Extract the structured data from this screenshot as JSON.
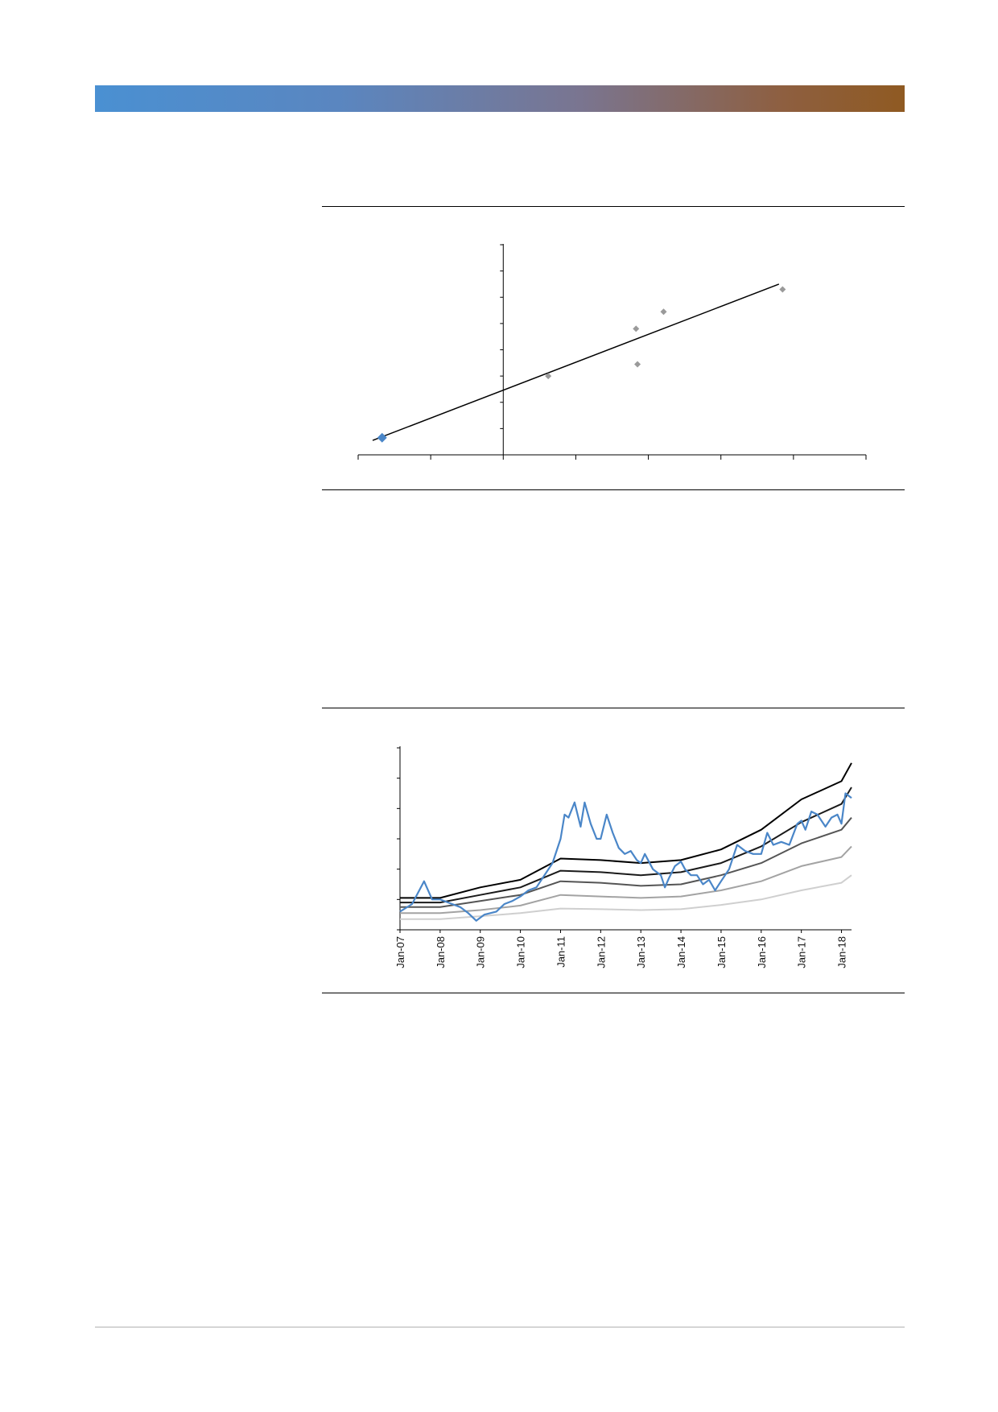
{
  "colors": {
    "banner_start": "#4a90d2",
    "banner_end": "#8f5a22",
    "accent_blue": "#4a86c8",
    "point_gray": "#9a9a9a"
  },
  "chart_data": [
    {
      "type": "scatter",
      "title": "",
      "xlabel": "",
      "ylabel": "",
      "xlim": [
        -2,
        5
      ],
      "ylim": [
        -2,
        6
      ],
      "grid": false,
      "legend": "none",
      "series": [
        {
          "values": [
            {
              "x": -1.67,
              "y": -1.35,
              "highlight": true
            },
            {
              "x": 0.62,
              "y": 1.0
            },
            {
              "x": 1.83,
              "y": 2.8
            },
            {
              "x": 1.85,
              "y": 1.45
            },
            {
              "x": 2.21,
              "y": 3.45
            },
            {
              "x": 3.85,
              "y": 4.3
            }
          ]
        }
      ],
      "trendline": {
        "type": "linear",
        "points": [
          {
            "x": -1.8,
            "y": -1.45
          },
          {
            "x": 3.8,
            "y": 4.5
          }
        ]
      }
    },
    {
      "type": "line",
      "title": "",
      "xlabel": "",
      "ylabel": "",
      "x_tick_labels": [
        "Jan-07",
        "Jan-08",
        "Jan-09",
        "Jan-10",
        "Jan-11",
        "Jan-12",
        "Jan-13",
        "Jan-14",
        "Jan-15",
        "Jan-16",
        "Jan-17",
        "Jan-18"
      ],
      "xlim": [
        2007.0,
        2018.25
      ],
      "ylim": [
        0,
        6
      ],
      "grid": false,
      "legend": "none",
      "series": [
        {
          "color": "#000000",
          "points": [
            [
              2007.0,
              1.05
            ],
            [
              2008.0,
              1.05
            ],
            [
              2009.0,
              1.4
            ],
            [
              2010.0,
              1.65
            ],
            [
              2011.0,
              2.35
            ],
            [
              2012.0,
              2.3
            ],
            [
              2013.0,
              2.2
            ],
            [
              2014.0,
              2.3
            ],
            [
              2015.0,
              2.65
            ],
            [
              2016.0,
              3.3
            ],
            [
              2017.0,
              4.3
            ],
            [
              2018.0,
              4.9
            ],
            [
              2018.25,
              5.5
            ]
          ]
        },
        {
          "color": "#1a1a1a",
          "points": [
            [
              2007.0,
              0.9
            ],
            [
              2008.0,
              0.9
            ],
            [
              2009.0,
              1.15
            ],
            [
              2010.0,
              1.4
            ],
            [
              2011.0,
              1.95
            ],
            [
              2012.0,
              1.9
            ],
            [
              2013.0,
              1.8
            ],
            [
              2014.0,
              1.9
            ],
            [
              2015.0,
              2.2
            ],
            [
              2016.0,
              2.75
            ],
            [
              2017.0,
              3.55
            ],
            [
              2018.0,
              4.15
            ],
            [
              2018.25,
              4.7
            ]
          ]
        },
        {
          "color": "#555555",
          "points": [
            [
              2007.0,
              0.75
            ],
            [
              2008.0,
              0.75
            ],
            [
              2009.0,
              0.95
            ],
            [
              2010.0,
              1.15
            ],
            [
              2011.0,
              1.6
            ],
            [
              2012.0,
              1.55
            ],
            [
              2013.0,
              1.45
            ],
            [
              2014.0,
              1.5
            ],
            [
              2015.0,
              1.8
            ],
            [
              2016.0,
              2.2
            ],
            [
              2017.0,
              2.85
            ],
            [
              2018.0,
              3.3
            ],
            [
              2018.25,
              3.7
            ]
          ]
        },
        {
          "color": "#a3a3a3",
          "points": [
            [
              2007.0,
              0.55
            ],
            [
              2008.0,
              0.55
            ],
            [
              2009.0,
              0.65
            ],
            [
              2010.0,
              0.8
            ],
            [
              2011.0,
              1.15
            ],
            [
              2012.0,
              1.1
            ],
            [
              2013.0,
              1.05
            ],
            [
              2014.0,
              1.1
            ],
            [
              2015.0,
              1.3
            ],
            [
              2016.0,
              1.6
            ],
            [
              2017.0,
              2.1
            ],
            [
              2018.0,
              2.4
            ],
            [
              2018.25,
              2.75
            ]
          ]
        },
        {
          "color": "#cfcfcf",
          "points": [
            [
              2007.0,
              0.35
            ],
            [
              2008.0,
              0.35
            ],
            [
              2009.0,
              0.45
            ],
            [
              2010.0,
              0.55
            ],
            [
              2011.0,
              0.7
            ],
            [
              2012.0,
              0.68
            ],
            [
              2013.0,
              0.65
            ],
            [
              2014.0,
              0.68
            ],
            [
              2015.0,
              0.82
            ],
            [
              2016.0,
              1.0
            ],
            [
              2017.0,
              1.3
            ],
            [
              2018.0,
              1.55
            ],
            [
              2018.25,
              1.8
            ]
          ]
        },
        {
          "color": "#4a86c8",
          "points": [
            [
              2007.0,
              0.6
            ],
            [
              2007.3,
              0.85
            ],
            [
              2007.6,
              1.6
            ],
            [
              2007.8,
              1.0
            ],
            [
              2008.0,
              1.0
            ],
            [
              2008.2,
              0.9
            ],
            [
              2008.5,
              0.75
            ],
            [
              2008.7,
              0.55
            ],
            [
              2008.9,
              0.3
            ],
            [
              2009.1,
              0.5
            ],
            [
              2009.4,
              0.6
            ],
            [
              2009.6,
              0.85
            ],
            [
              2009.8,
              0.95
            ],
            [
              2010.0,
              1.1
            ],
            [
              2010.2,
              1.3
            ],
            [
              2010.4,
              1.4
            ],
            [
              2010.6,
              1.8
            ],
            [
              2010.8,
              2.2
            ],
            [
              2011.0,
              3.0
            ],
            [
              2011.1,
              3.8
            ],
            [
              2011.2,
              3.7
            ],
            [
              2011.35,
              4.2
            ],
            [
              2011.5,
              3.4
            ],
            [
              2011.6,
              4.2
            ],
            [
              2011.75,
              3.5
            ],
            [
              2011.9,
              3.0
            ],
            [
              2012.0,
              3.0
            ],
            [
              2012.15,
              3.8
            ],
            [
              2012.3,
              3.2
            ],
            [
              2012.45,
              2.7
            ],
            [
              2012.6,
              2.5
            ],
            [
              2012.75,
              2.6
            ],
            [
              2012.9,
              2.3
            ],
            [
              2013.0,
              2.2
            ],
            [
              2013.1,
              2.5
            ],
            [
              2013.3,
              2.0
            ],
            [
              2013.5,
              1.8
            ],
            [
              2013.6,
              1.4
            ],
            [
              2013.7,
              1.7
            ],
            [
              2013.85,
              2.1
            ],
            [
              2014.0,
              2.25
            ],
            [
              2014.1,
              2.0
            ],
            [
              2014.25,
              1.8
            ],
            [
              2014.4,
              1.8
            ],
            [
              2014.55,
              1.5
            ],
            [
              2014.7,
              1.65
            ],
            [
              2014.85,
              1.3
            ],
            [
              2015.0,
              1.6
            ],
            [
              2015.2,
              2.0
            ],
            [
              2015.4,
              2.8
            ],
            [
              2015.6,
              2.6
            ],
            [
              2015.8,
              2.5
            ],
            [
              2016.0,
              2.5
            ],
            [
              2016.15,
              3.2
            ],
            [
              2016.3,
              2.8
            ],
            [
              2016.5,
              2.9
            ],
            [
              2016.7,
              2.8
            ],
            [
              2016.9,
              3.5
            ],
            [
              2017.0,
              3.6
            ],
            [
              2017.1,
              3.3
            ],
            [
              2017.25,
              3.9
            ],
            [
              2017.4,
              3.8
            ],
            [
              2017.6,
              3.4
            ],
            [
              2017.75,
              3.7
            ],
            [
              2017.9,
              3.8
            ],
            [
              2018.0,
              3.5
            ],
            [
              2018.1,
              4.5
            ],
            [
              2018.25,
              4.35
            ]
          ]
        }
      ]
    }
  ]
}
